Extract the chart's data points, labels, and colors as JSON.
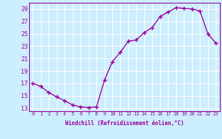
{
  "x": [
    0,
    1,
    2,
    3,
    4,
    5,
    6,
    7,
    8,
    9,
    10,
    11,
    12,
    13,
    14,
    15,
    16,
    17,
    18,
    19,
    20,
    21,
    22,
    23
  ],
  "y": [
    17.0,
    16.5,
    15.5,
    14.8,
    14.2,
    13.5,
    13.2,
    13.1,
    13.2,
    17.5,
    20.5,
    22.0,
    23.8,
    24.0,
    25.2,
    26.0,
    27.8,
    28.5,
    29.2,
    29.1,
    29.0,
    28.7,
    25.0,
    23.5
  ],
  "line_color": "#990099",
  "marker": "+",
  "markersize": 4,
  "linewidth": 1.0,
  "xlabel": "Windchill (Refroidissement éolien,°C)",
  "xlim": [
    -0.5,
    23.5
  ],
  "ylim": [
    12.5,
    30.0
  ],
  "yticks": [
    13,
    15,
    17,
    19,
    21,
    23,
    25,
    27,
    29
  ],
  "xticks": [
    0,
    1,
    2,
    3,
    4,
    5,
    6,
    7,
    8,
    9,
    10,
    11,
    12,
    13,
    14,
    15,
    16,
    17,
    18,
    19,
    20,
    21,
    22,
    23
  ],
  "bg_color": "#cceeff",
  "grid_color": "#ffffff",
  "tick_color": "#990099",
  "label_color": "#990099"
}
